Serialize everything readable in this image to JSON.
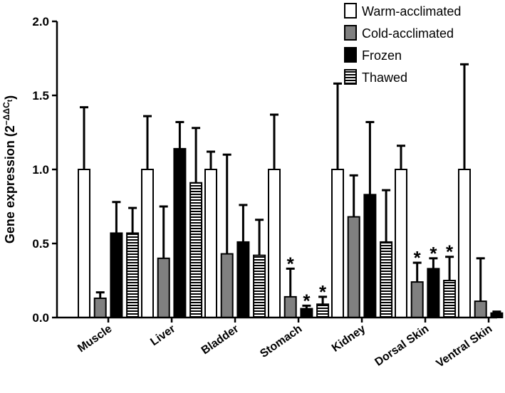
{
  "chart_data": {
    "type": "bar",
    "title": "",
    "xlabel": "",
    "ylabel": "Gene expression (2",
    "ylabel_superscript": "−ΔΔC",
    "ylabel_subscript": "t",
    "ylabel_close": ")",
    "ylim": [
      0,
      2.0
    ],
    "yticks": [
      "0.0",
      "0.5",
      "1.0",
      "1.5",
      "2.0"
    ],
    "categories": [
      "Muscle",
      "Liver",
      "Bladder",
      "Stomach",
      "Kidney",
      "Dorsal Skin",
      "Ventral Skin"
    ],
    "series": [
      {
        "name": "Warm-acclimated",
        "fill": "#ffffff",
        "pattern": "solid",
        "values": [
          1.0,
          1.0,
          1.0,
          1.0,
          1.0,
          1.0,
          1.0
        ],
        "errors": [
          1.42,
          1.36,
          1.12,
          1.37,
          1.58,
          1.16,
          1.71
        ]
      },
      {
        "name": "Cold-acclimated",
        "fill": "#808080",
        "pattern": "solid",
        "values": [
          0.13,
          0.4,
          0.43,
          0.14,
          0.68,
          0.24,
          0.11
        ],
        "errors": [
          0.17,
          0.75,
          1.1,
          0.33,
          0.96,
          0.37,
          0.4
        ]
      },
      {
        "name": "Frozen",
        "fill": "#000000",
        "pattern": "solid",
        "values": [
          0.57,
          1.14,
          0.51,
          0.06,
          0.83,
          0.33,
          0.03
        ],
        "errors": [
          0.78,
          1.32,
          0.76,
          0.08,
          1.32,
          0.4,
          0.04
        ]
      },
      {
        "name": "Thawed",
        "fill": "#ffffff",
        "pattern": "stripes",
        "values": [
          0.57,
          0.91,
          0.42,
          0.09,
          0.51,
          0.25,
          0.04
        ],
        "errors": [
          0.74,
          1.28,
          0.66,
          0.14,
          0.86,
          0.41,
          0.05
        ]
      }
    ],
    "significance": [
      {
        "category": 3,
        "series": 1,
        "label": "*"
      },
      {
        "category": 3,
        "series": 2,
        "label": "*"
      },
      {
        "category": 3,
        "series": 3,
        "label": "*"
      },
      {
        "category": 5,
        "series": 1,
        "label": "*"
      },
      {
        "category": 5,
        "series": 2,
        "label": "*"
      },
      {
        "category": 5,
        "series": 3,
        "label": "*"
      }
    ],
    "legend_position": "top-right",
    "grid": false
  }
}
